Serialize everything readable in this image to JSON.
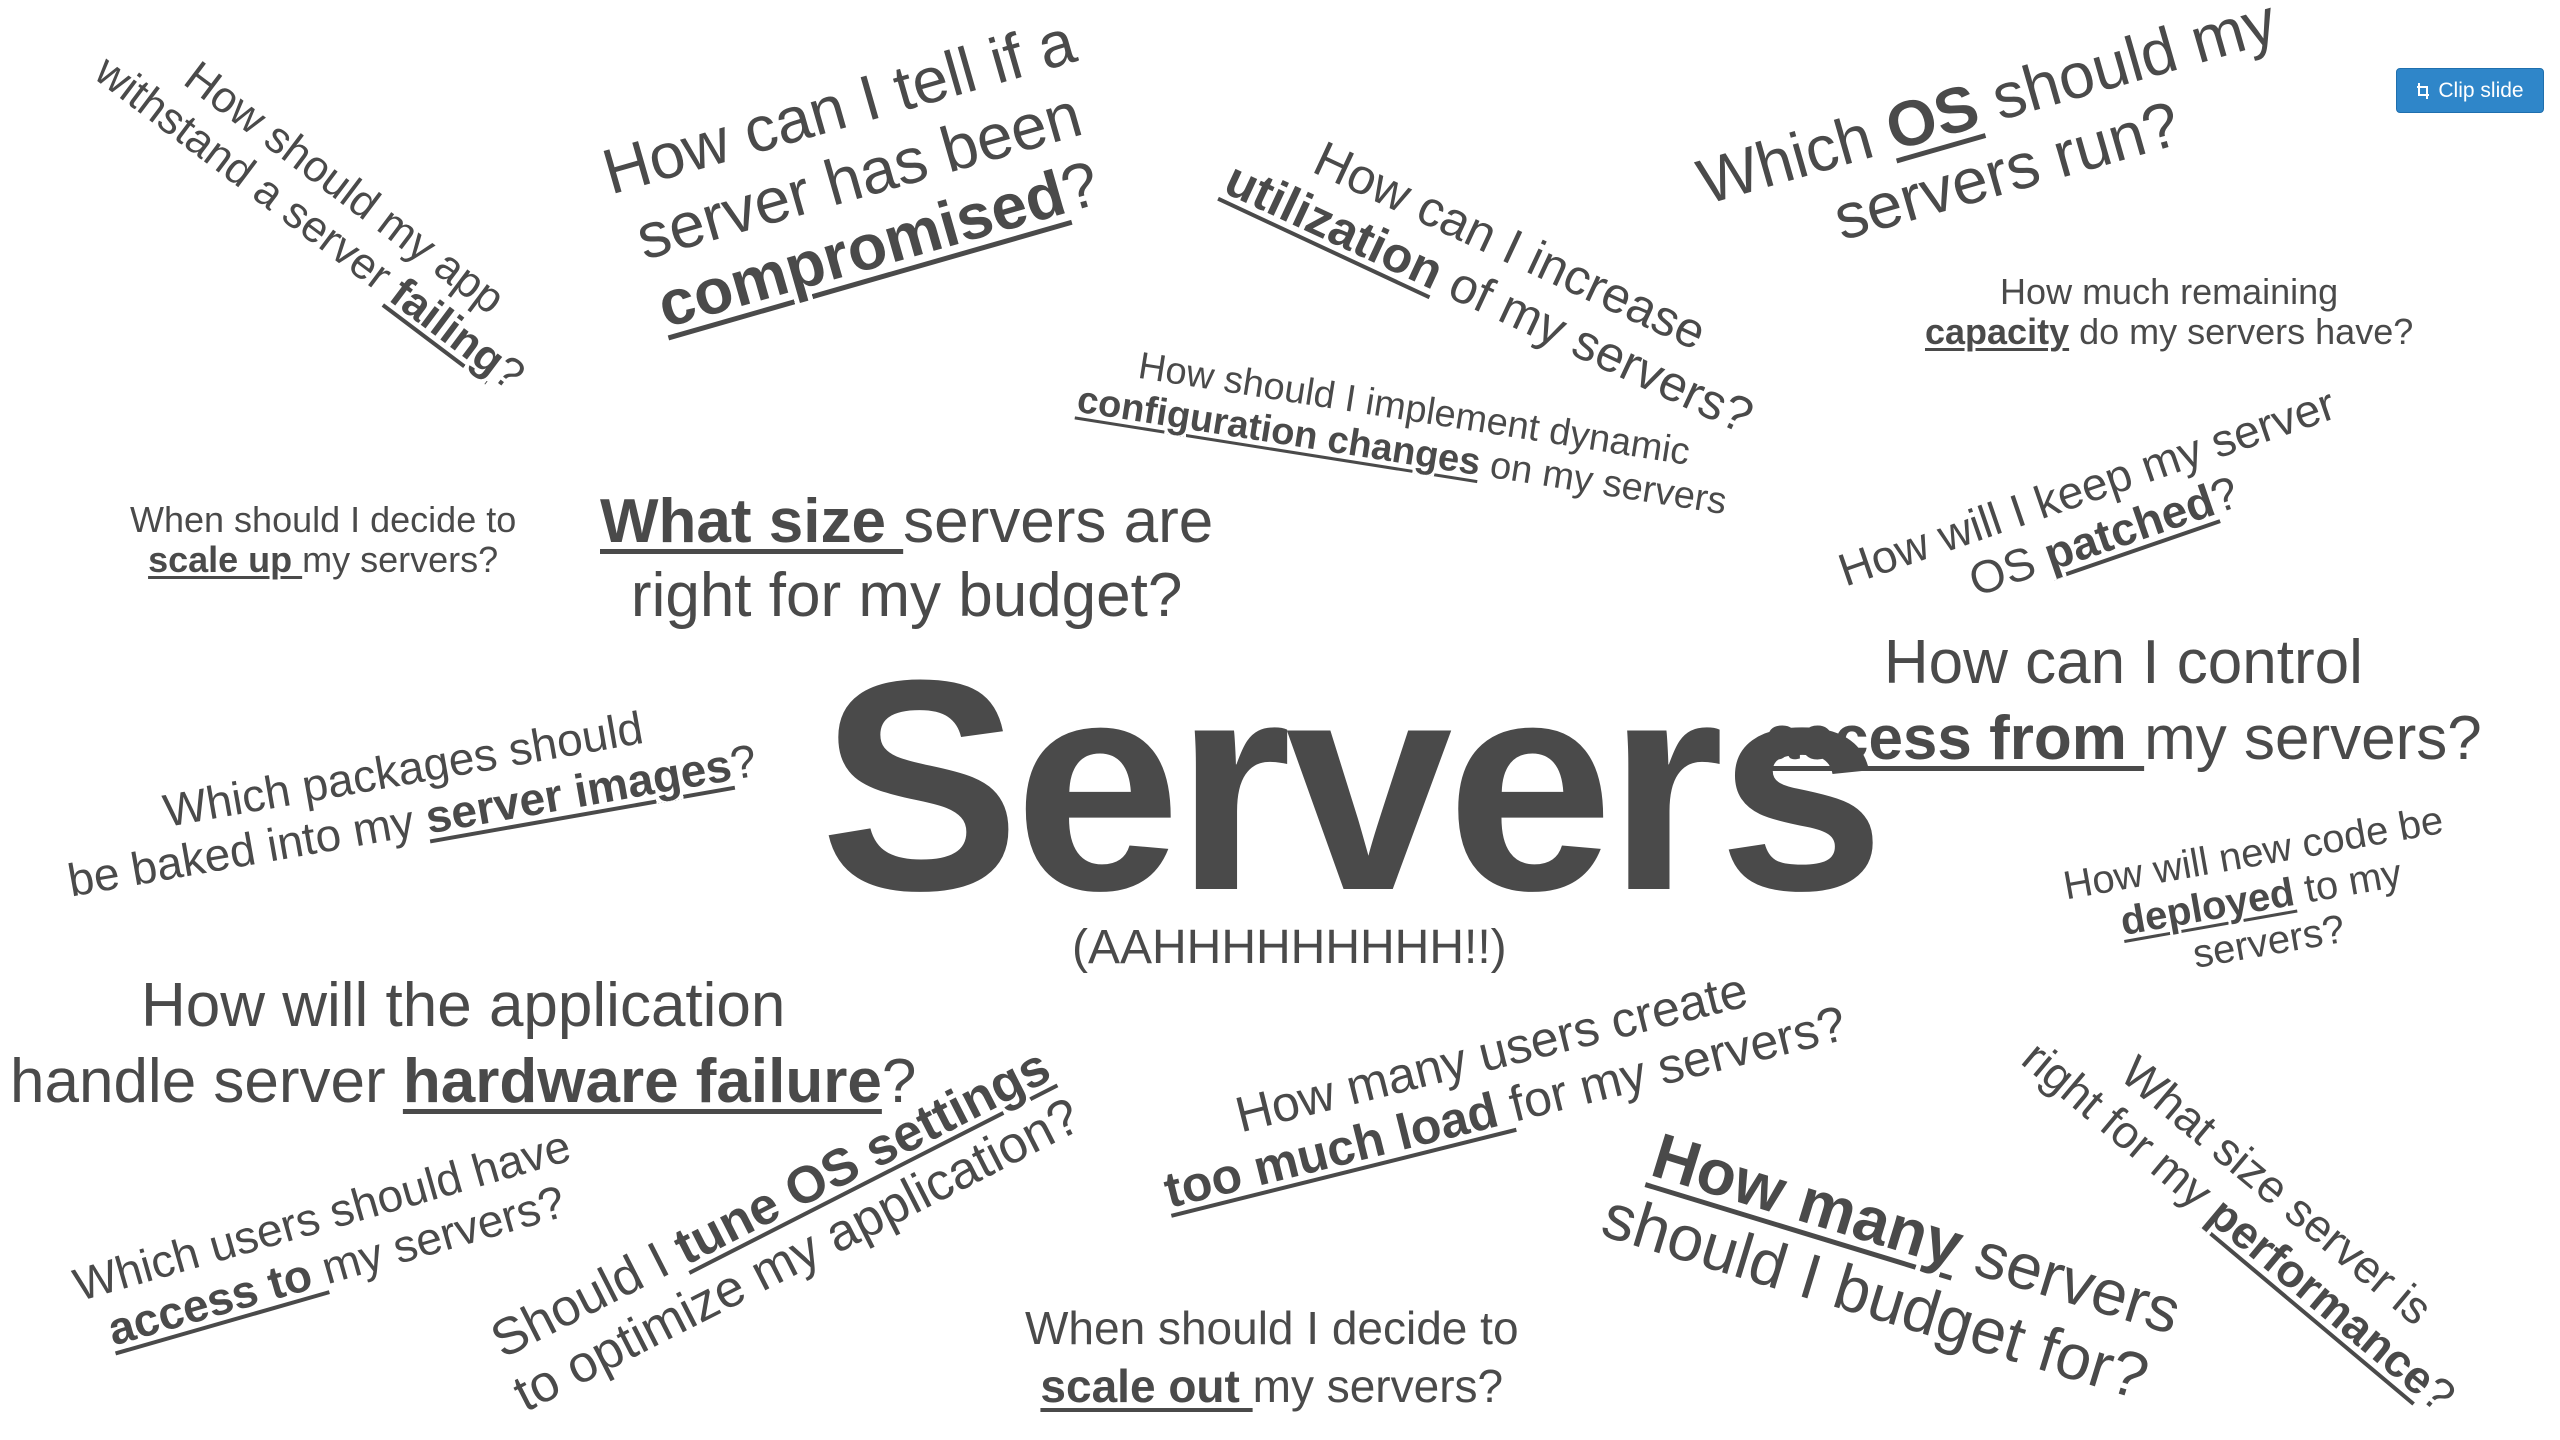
{
  "clip_button": {
    "label": "Clip slide",
    "icon": "clip-icon",
    "color": "#2f86c9"
  },
  "title": "Servers",
  "subtitle": "(AAHHHHHHHHH!!)",
  "questions": {
    "withstand_failing": {
      "l1": "How should my app",
      "l2a": "withstand a server ",
      "l2b": "failing",
      "l2c": "?"
    },
    "compromised": {
      "l1": "How can I tell if a",
      "l2": "server has been",
      "l3a": "compromised",
      "l3b": "?"
    },
    "utilization": {
      "l1": "How can I increase",
      "l2a": "utilization",
      "l2b": " of my servers?"
    },
    "which_os": {
      "l1a": "Which ",
      "l1b": "OS",
      "l1c": " should my",
      "l2": "servers run?"
    },
    "remaining_capacity": {
      "l1": "How much remaining",
      "l2a": "capacity",
      "l2b": " do my servers have?"
    },
    "dynamic_config": {
      "l1": "How should I implement dynamic",
      "l2a": "configuration changes",
      "l2b": " on my servers"
    },
    "scale_up": {
      "l1": "When should I decide to",
      "l2a": "scale up ",
      "l2b": "my servers?"
    },
    "what_size_budget": {
      "l1a": "What size ",
      "l1b": "servers are",
      "l2": "right for my budget?"
    },
    "patched": {
      "l1": "How will I keep my server",
      "l2a": "OS ",
      "l2b": "patched",
      "l2c": "?"
    },
    "control_access": {
      "l1": "How can I control",
      "l2a": "access from ",
      "l2b": "my servers?"
    },
    "server_images": {
      "l1": "Which packages should",
      "l2a": "be baked into my ",
      "l2b": "server images",
      "l2c": "?"
    },
    "deployed": {
      "l1": "How will new code be",
      "l2a": "deployed",
      "l2b": " to my",
      "l3": "servers?"
    },
    "hardware_failure": {
      "l1": "How will the application",
      "l2a": "handle server ",
      "l2b": "hardware failure",
      "l2c": "?"
    },
    "too_much_load": {
      "l1": "How many users create",
      "l2a": "too much load ",
      "l2b": "for my servers?"
    },
    "perf_size": {
      "l1": "What size server is",
      "l2a": "right for my ",
      "l2b": "performance",
      "l2c": "?"
    },
    "access_to": {
      "l1": "Which users should have",
      "l2a": "access to ",
      "l2b": "my servers?"
    },
    "tune_os": {
      "l1a": "Should I ",
      "l1b": "tune OS settings",
      "l2": "to optimize my application?"
    },
    "scale_out": {
      "l1": "When should I decide to",
      "l2a": "scale out ",
      "l2b": "my servers?"
    },
    "how_many": {
      "l1a": "How many",
      "l1b": " servers",
      "l2": "should I budget for?"
    }
  }
}
